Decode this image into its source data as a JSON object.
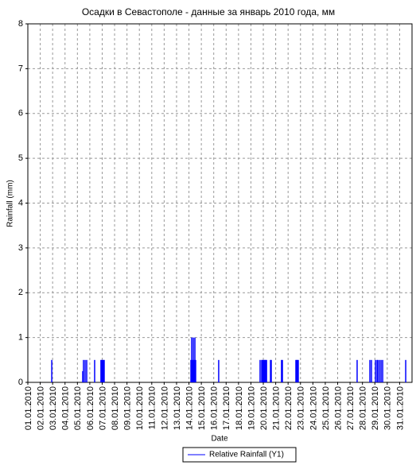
{
  "chart_data": {
    "type": "bar",
    "title": "Осадки в Севастополе - данные за январь 2010 года, мм",
    "x_label": "Date",
    "y_label": "Rainfall (mm)",
    "x": [
      2.93,
      5.43,
      5.49,
      5.62,
      5.75,
      6.39,
      6.9,
      6.97,
      7.03,
      7.1,
      7.16,
      14.16,
      14.22,
      14.29,
      14.35,
      14.41,
      14.48,
      14.54,
      16.4,
      19.74,
      19.87,
      19.93,
      20.0,
      20.06,
      20.13,
      20.19,
      20.26,
      20.58,
      20.64,
      21.47,
      21.54,
      22.63,
      22.69,
      22.76,
      22.82,
      27.57,
      28.6,
      28.73,
      29.05,
      29.18,
      29.24,
      29.37,
      29.5,
      29.63,
      31.49
    ],
    "series": [
      {
        "name": "Relative Rainfall (Y1)",
        "color": "#0000ff",
        "values": [
          0.5,
          0.25,
          0.5,
          0.5,
          0.5,
          0.5,
          0.5,
          0.5,
          0.5,
          0.5,
          0.5,
          0.5,
          1,
          0.5,
          1,
          0.5,
          1,
          0.5,
          0.5,
          0.5,
          0.5,
          0.5,
          0.5,
          0.5,
          0.5,
          0.5,
          0.5,
          0.5,
          0.5,
          0.5,
          0.5,
          0.5,
          0.5,
          0.5,
          0.5,
          0.5,
          0.5,
          0.5,
          0.5,
          0.5,
          0.5,
          0.5,
          0.5,
          0.5,
          0.5
        ]
      }
    ],
    "xlim": [
      1,
      32
    ],
    "xticks": [
      {
        "value": 1,
        "label": "01.01.2010"
      },
      {
        "value": 2,
        "label": "02.01.2010"
      },
      {
        "value": 3,
        "label": "03.01.2010"
      },
      {
        "value": 4,
        "label": "04.01.2010"
      },
      {
        "value": 5,
        "label": "05.01.2010"
      },
      {
        "value": 6,
        "label": "06.01.2010"
      },
      {
        "value": 7,
        "label": "07.01.2010"
      },
      {
        "value": 8,
        "label": "08.01.2010"
      },
      {
        "value": 9,
        "label": "09.01.2010"
      },
      {
        "value": 10,
        "label": "10.01.2010"
      },
      {
        "value": 11,
        "label": "11.01.2010"
      },
      {
        "value": 12,
        "label": "12.01.2010"
      },
      {
        "value": 13,
        "label": "13.01.2010"
      },
      {
        "value": 14,
        "label": "14.01.2010"
      },
      {
        "value": 15,
        "label": "15.01.2010"
      },
      {
        "value": 16,
        "label": "16.01.2010"
      },
      {
        "value": 17,
        "label": "17.01.2010"
      },
      {
        "value": 18,
        "label": "18.01.2010"
      },
      {
        "value": 19,
        "label": "19.01.2010"
      },
      {
        "value": 20,
        "label": "20.01.2010"
      },
      {
        "value": 21,
        "label": "21.01.2010"
      },
      {
        "value": 22,
        "label": "22.01.2010"
      },
      {
        "value": 23,
        "label": "23.01.2010"
      },
      {
        "value": 24,
        "label": "24.01.2010"
      },
      {
        "value": 25,
        "label": "25.01.2010"
      },
      {
        "value": 26,
        "label": "26.01.2010"
      },
      {
        "value": 27,
        "label": "27.01.2010"
      },
      {
        "value": 28,
        "label": "28.01.2010"
      },
      {
        "value": 29,
        "label": "29.01.2010"
      },
      {
        "value": 30,
        "label": "30.01.2010"
      },
      {
        "value": 31,
        "label": "31.01.2010"
      }
    ],
    "ylim": [
      0,
      8
    ],
    "yticks": [
      0,
      1,
      2,
      3,
      4,
      5,
      6,
      7,
      8
    ],
    "grid": true
  }
}
